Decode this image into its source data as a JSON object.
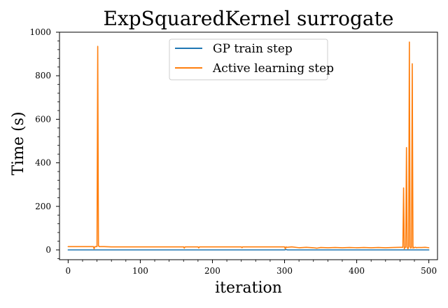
{
  "chart_data": {
    "type": "line",
    "title": "ExpSquaredKernel surrogate",
    "xlabel": "iteration",
    "ylabel": "Time (s)",
    "xlim": [
      -12,
      512
    ],
    "ylim": [
      -45,
      1000
    ],
    "xticks": [
      0,
      100,
      200,
      300,
      400,
      500
    ],
    "yticks": [
      0,
      200,
      400,
      600,
      800,
      1000
    ],
    "grid": false,
    "legend_position": "top-center",
    "series": [
      {
        "name": "GP train step",
        "color": "#1f77b4",
        "x": [
          0,
          100,
          200,
          300,
          302,
          304,
          400,
          500
        ],
        "y": [
          0,
          0,
          0,
          0,
          2,
          0,
          0,
          0
        ]
      },
      {
        "name": "Active learning step",
        "color": "#ff7f0e",
        "x": [
          0,
          10,
          20,
          30,
          35,
          36,
          37,
          38,
          39,
          40,
          41,
          42,
          43,
          44,
          50,
          60,
          100,
          160,
          161,
          162,
          180,
          181,
          182,
          200,
          240,
          241,
          242,
          280,
          300,
          301,
          302,
          303,
          310,
          320,
          330,
          340,
          345,
          350,
          360,
          370,
          380,
          390,
          400,
          410,
          420,
          430,
          440,
          450,
          460,
          462,
          463,
          464,
          465,
          466,
          467,
          468,
          469,
          470,
          471,
          472,
          473,
          474,
          475,
          476,
          477,
          478,
          479,
          480,
          481,
          482,
          483,
          484,
          490,
          495,
          500
        ],
        "y": [
          15,
          15,
          15,
          15,
          15,
          5,
          15,
          15,
          15,
          15,
          935,
          20,
          15,
          15,
          15,
          14,
          14,
          14,
          8,
          14,
          14,
          9,
          14,
          14,
          14,
          10,
          14,
          14,
          14,
          5,
          14,
          12,
          14,
          10,
          12,
          10,
          8,
          11,
          10,
          11,
          10,
          11,
          10,
          11,
          10,
          11,
          10,
          11,
          12,
          12,
          12,
          12,
          285,
          5,
          12,
          12,
          470,
          12,
          5,
          12,
          955,
          15,
          8,
          12,
          855,
          8,
          12,
          10,
          12,
          12,
          10,
          11,
          11,
          12,
          10
        ]
      }
    ]
  }
}
